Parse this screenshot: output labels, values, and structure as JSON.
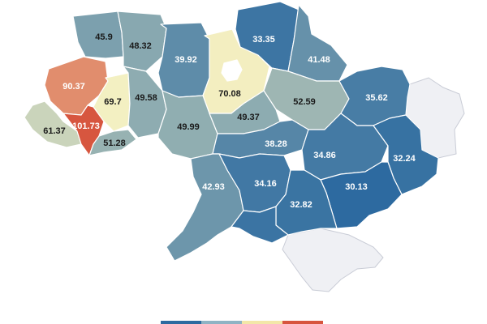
{
  "map": {
    "colors": {
      "low": "#2c6aa0",
      "mid": "#f3f0c2",
      "high": "#d7553e",
      "nodata": "#eff0f4"
    },
    "value_range": [
      30,
      102
    ],
    "regions": [
      {
        "id": "volyn",
        "value": "45.9"
      },
      {
        "id": "rivne",
        "value": "48.32"
      },
      {
        "id": "zhytomyr",
        "value": "39.92"
      },
      {
        "id": "kyiv-oblast",
        "value": "70.08"
      },
      {
        "id": "chernihiv",
        "value": "33.35"
      },
      {
        "id": "sumy",
        "value": "41.48"
      },
      {
        "id": "lviv",
        "value": "90.37"
      },
      {
        "id": "ternopil",
        "value": "69.7"
      },
      {
        "id": "khmelnytskyi",
        "value": "49.58"
      },
      {
        "id": "poltava",
        "value": "52.59"
      },
      {
        "id": "kharkiv",
        "value": "35.62"
      },
      {
        "id": "zakarpattia",
        "value": "61.37"
      },
      {
        "id": "ivano-frankivsk",
        "value": "101.73"
      },
      {
        "id": "chernivtsi",
        "value": "51.28"
      },
      {
        "id": "vinnytsia",
        "value": "49.99"
      },
      {
        "id": "cherkasy",
        "value": "49.37"
      },
      {
        "id": "kirovohrad",
        "value": "38.28"
      },
      {
        "id": "dnipropetrovsk",
        "value": "34.86"
      },
      {
        "id": "luhansk",
        "value": "32.24"
      },
      {
        "id": "odesa",
        "value": "42.93"
      },
      {
        "id": "mykolaiv",
        "value": "34.16"
      },
      {
        "id": "donetsk",
        "value": "30.13"
      },
      {
        "id": "zaporizhzhia",
        "value": "32.82"
      },
      {
        "id": "kherson",
        "value": ""
      }
    ]
  }
}
